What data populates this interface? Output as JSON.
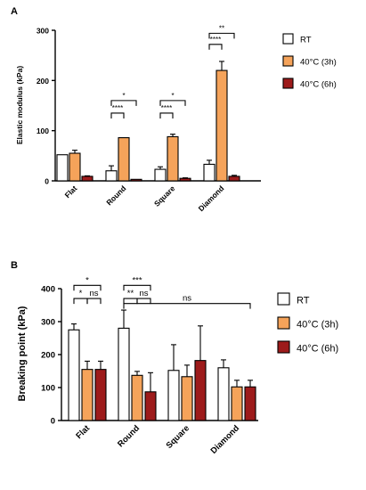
{
  "colors": {
    "rt": "#ffffff",
    "h3": "#f5a35a",
    "h6": "#9d1b1b",
    "stroke": "#000000"
  },
  "chart_data": [
    {
      "type": "bar",
      "panel_label": "A",
      "categories": [
        "Flat",
        "Round",
        "Square",
        "Diamond"
      ],
      "ylabel": "Elastic modulus (kPa)",
      "ylim": [
        0,
        300
      ],
      "yticks": [
        0,
        100,
        200,
        300
      ],
      "legend_position": "right",
      "series": [
        {
          "name": "RT",
          "values": [
            52,
            20,
            23,
            33
          ],
          "errors": [
            0,
            10,
            5,
            8
          ]
        },
        {
          "name": "40°C (3h)",
          "values": [
            55,
            86,
            88,
            220
          ],
          "errors": [
            6,
            0,
            5,
            18
          ]
        },
        {
          "name": "40°C (6h)",
          "values": [
            9,
            3,
            5,
            9
          ],
          "errors": [
            1,
            0,
            1,
            2
          ]
        }
      ],
      "significance": [
        {
          "category": "Round",
          "pair": [
            0,
            1
          ],
          "label": "****",
          "y": 135
        },
        {
          "category": "Round",
          "pair": [
            0,
            2
          ],
          "label": "*",
          "y": 160
        },
        {
          "category": "Square",
          "pair": [
            0,
            1
          ],
          "label": "****",
          "y": 135
        },
        {
          "category": "Square",
          "pair": [
            0,
            2
          ],
          "label": "*",
          "y": 160
        },
        {
          "category": "Diamond",
          "pair": [
            0,
            1
          ],
          "label": "****",
          "y": 272
        },
        {
          "category": "Diamond",
          "pair": [
            0,
            2
          ],
          "label": "**",
          "y": 294
        }
      ]
    },
    {
      "type": "bar",
      "panel_label": "B",
      "categories": [
        "Flat",
        "Round",
        "Square",
        "Diamond"
      ],
      "ylabel": "Breaking point (kPa)",
      "ylim": [
        0,
        400
      ],
      "yticks": [
        0,
        100,
        200,
        300,
        400
      ],
      "legend_position": "right",
      "series": [
        {
          "name": "RT",
          "values": [
            275,
            280,
            152,
            160
          ],
          "errors": [
            18,
            55,
            78,
            24
          ]
        },
        {
          "name": "40°C (3h)",
          "values": [
            155,
            137,
            133,
            102
          ],
          "errors": [
            25,
            12,
            35,
            20
          ]
        },
        {
          "name": "40°C (6h)",
          "values": [
            155,
            87,
            182,
            102
          ],
          "errors": [
            25,
            58,
            105,
            20
          ]
        }
      ],
      "significance": [
        {
          "kind": "pair",
          "category": "Flat",
          "pair": [
            0,
            1
          ],
          "label": "*",
          "y": 370
        },
        {
          "kind": "pair",
          "category": "Flat",
          "pair": [
            1,
            2
          ],
          "label": "ns",
          "y": 370
        },
        {
          "kind": "pair",
          "category": "Flat",
          "pair": [
            0,
            2
          ],
          "label": "*",
          "y": 410
        },
        {
          "kind": "pair",
          "category": "Round",
          "pair": [
            0,
            1
          ],
          "label": "**",
          "y": 370
        },
        {
          "kind": "pair",
          "category": "Round",
          "pair": [
            1,
            2
          ],
          "label": "ns",
          "y": 370
        },
        {
          "kind": "pair",
          "category": "Round",
          "pair": [
            0,
            2
          ],
          "label": "***",
          "y": 410
        },
        {
          "kind": "span",
          "from": [
            "Round",
            0
          ],
          "to": [
            "Diamond",
            2
          ],
          "label": "ns",
          "y": 355
        }
      ]
    }
  ]
}
